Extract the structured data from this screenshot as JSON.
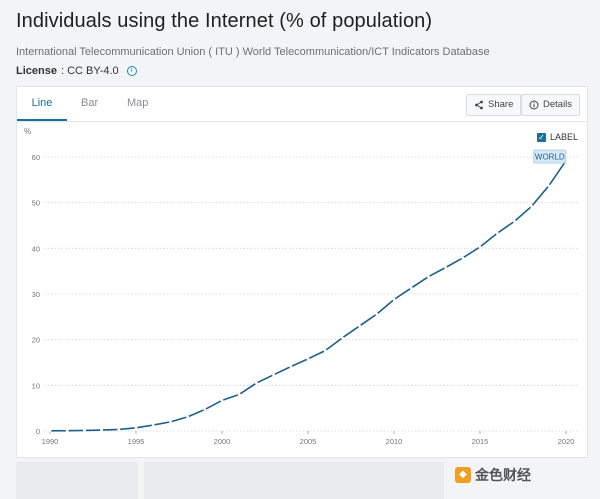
{
  "header": {
    "title": "Individuals using the Internet (% of population)",
    "source": "International Telecommunication Union ( ITU ) World Telecommunication/ICT Indicators Database",
    "license_label": "License",
    "license_value": ": CC BY-4.0"
  },
  "tabs": [
    {
      "label": "Line"
    },
    {
      "label": "Bar"
    },
    {
      "label": "Map"
    }
  ],
  "actions": {
    "share": "Share",
    "details": "Details"
  },
  "legend": {
    "label": "LABEL",
    "checked": true
  },
  "watermark": "金色财经",
  "colors": {
    "accent": "#1a6f9c",
    "line": "#1f5f8b",
    "grid": "#cfd3d8"
  },
  "chart_data": {
    "type": "line",
    "title": "Individuals using the Internet (% of population)",
    "ylabel": "%",
    "xlabel": "",
    "xlim": [
      1990,
      2020
    ],
    "ylim": [
      0,
      60
    ],
    "yticks": [
      0,
      10,
      20,
      30,
      40,
      50,
      60
    ],
    "xticks": [
      1990,
      1995,
      2000,
      2005,
      2010,
      2015,
      2020
    ],
    "series": [
      {
        "name": "WORLD",
        "x": [
          1990,
          1991,
          1992,
          1993,
          1994,
          1995,
          1996,
          1997,
          1998,
          1999,
          2000,
          2001,
          2002,
          2003,
          2004,
          2005,
          2006,
          2007,
          2008,
          2009,
          2010,
          2011,
          2012,
          2013,
          2014,
          2015,
          2016,
          2017,
          2018,
          2019,
          2020
        ],
        "values": [
          0.05,
          0.07,
          0.12,
          0.2,
          0.35,
          0.7,
          1.3,
          2.0,
          3.1,
          4.7,
          6.7,
          8.0,
          10.5,
          12.3,
          14.1,
          15.8,
          17.6,
          20.4,
          23.0,
          25.6,
          28.8,
          31.3,
          33.8,
          35.8,
          37.9,
          40.3,
          43.3,
          45.9,
          49.2,
          53.7,
          59.2
        ]
      }
    ],
    "annotations": [
      {
        "text": "WORLD",
        "x": 2019,
        "y": 56.5
      }
    ]
  }
}
